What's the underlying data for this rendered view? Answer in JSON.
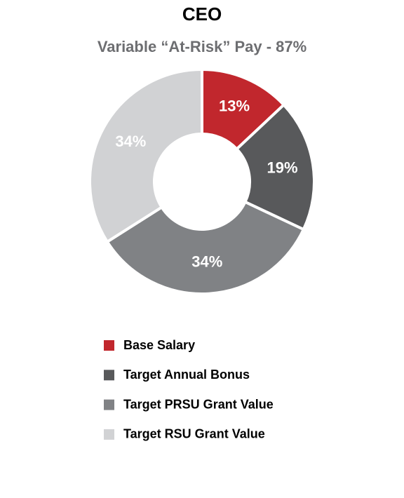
{
  "chart_data": {
    "type": "donut",
    "title": "CEO",
    "subtitle": "Variable “At-Risk” Pay - 87%",
    "categories": [
      "Base Salary",
      "Target Annual Bonus",
      "Target PRSU Grant Value",
      "Target RSU Grant Value"
    ],
    "values": [
      13,
      19,
      34,
      34
    ],
    "value_labels": [
      "13%",
      "19%",
      "34%",
      "34%"
    ],
    "colors": [
      "#c1272d",
      "#58595b",
      "#808285",
      "#d1d2d4"
    ],
    "legend": "bottom"
  }
}
